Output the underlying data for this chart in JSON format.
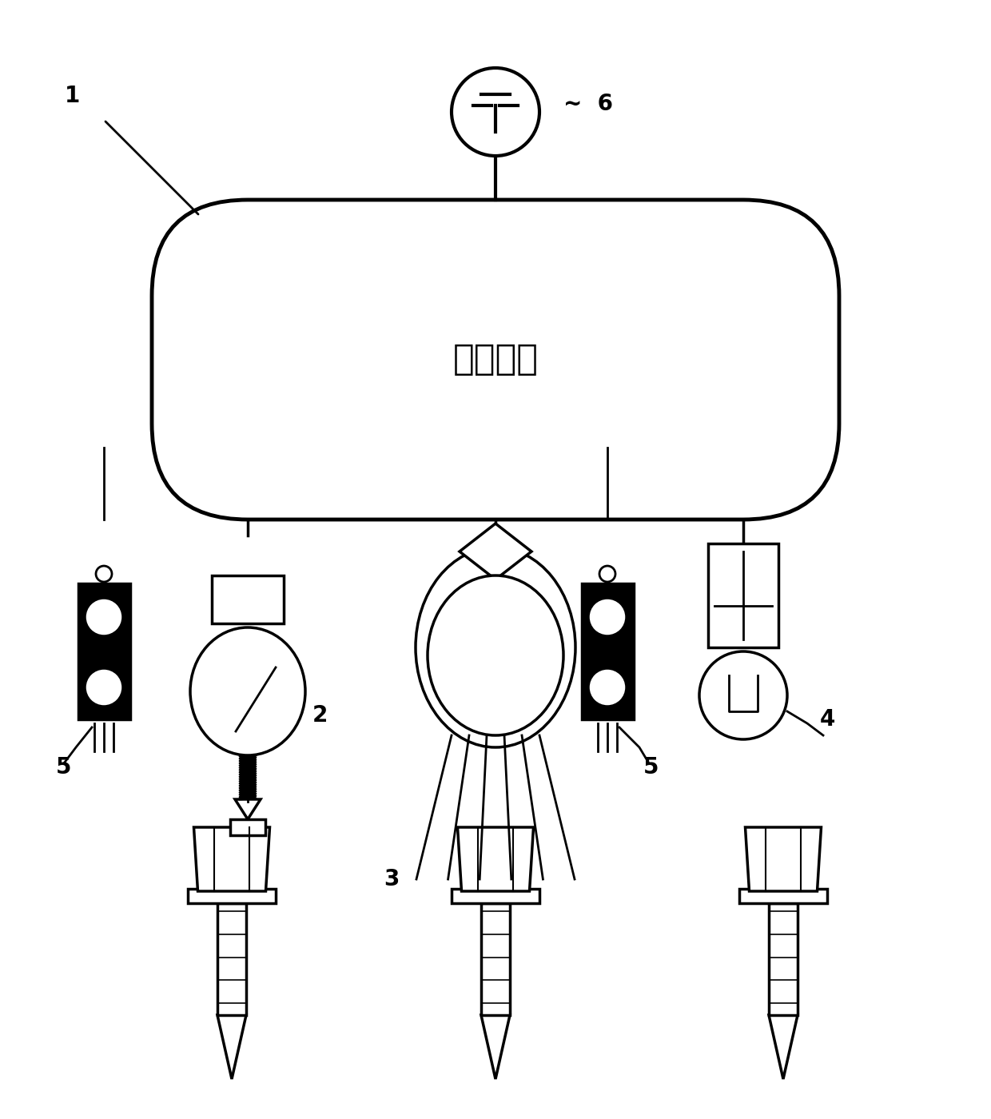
{
  "title": "",
  "main_label": "中控系统",
  "bg_color": "#ffffff",
  "line_color": "#000000",
  "label_1": "1",
  "label_2": "2",
  "label_3": "3",
  "label_4": "4",
  "label_5_left": "5",
  "label_5_right": "5",
  "label_6": "6",
  "main_text_fontsize": 32,
  "label_fontsize": 20
}
